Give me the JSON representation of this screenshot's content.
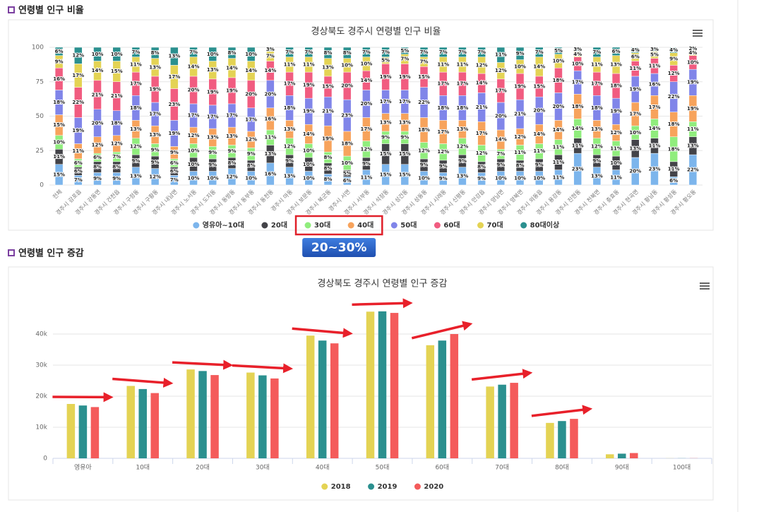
{
  "headings": [
    "연령별 인구 비율",
    "연령별 인구 증감"
  ],
  "annotation": "20~30%",
  "chart_data": [
    {
      "type": "stacked_bar",
      "title": "경상북도 경주시 연령별 인구 비율",
      "categories": [
        "전체",
        "경주시 감포읍",
        "경주시 강동면",
        "경주시 건천읍",
        "경주시 구정동",
        "경주시 구황동",
        "경주시 내남면",
        "경주시 노서동",
        "경주시 도지동",
        "경주시 동방동",
        "경주시 동부동",
        "경주시 동천동",
        "경주시 마동",
        "경주시 보문동",
        "경주시 북군동",
        "경주시 서면",
        "경주시 서부동",
        "경주시 석장동",
        "경주시 성건동",
        "경주시 성동동",
        "경주시 시래동",
        "경주시 신평동",
        "경주시 안강읍",
        "경주시 양남면",
        "경주시 양북면",
        "경주시 외동읍",
        "경주시 용강동",
        "경주시 진현동",
        "경주시 천북면",
        "경주시 충효동",
        "경주시 현곡면",
        "경주시 황남동",
        "경주시 황성동",
        "경주시 황오동"
      ],
      "ylim": [
        0,
        100
      ],
      "yticks": [
        0,
        25,
        50,
        75,
        100
      ],
      "grid": true,
      "series": [
        {
          "name": "영유아~10대",
          "color": "#7cb5ec",
          "values": [
            15,
            7,
            9,
            9,
            13,
            12,
            7,
            10,
            10,
            12,
            10,
            16,
            13,
            10,
            8,
            6,
            11,
            15,
            15,
            10,
            9,
            13,
            9,
            10,
            10,
            10,
            11,
            23,
            13,
            11,
            20,
            23,
            6,
            22
          ],
          "value_labels": [
            "15%",
            "7%",
            "9%",
            "9%",
            "13%",
            "12%",
            "7%",
            "10%",
            "10%",
            "12%",
            "10%",
            "16%",
            "13%",
            "10%",
            "8%",
            "6%",
            "11%",
            "15%",
            "15%",
            "10%",
            "9%",
            "13%",
            "9%",
            "10%",
            "10%",
            "10%",
            "11%",
            "23%",
            "13%",
            "11%",
            "20%",
            "23%",
            "6%",
            "22%"
          ]
        },
        {
          "name": "20대",
          "color": "#434348",
          "values": [
            11,
            6,
            8,
            8,
            9,
            9,
            6,
            10,
            9,
            8,
            8,
            13,
            9,
            10,
            8,
            5,
            9,
            15,
            15,
            9,
            9,
            9,
            8,
            9,
            8,
            9,
            11,
            11,
            9,
            10,
            13,
            11,
            11,
            13
          ],
          "value_labels": [
            "11%",
            "6%",
            "8%",
            "8%",
            "9%",
            "9%",
            "6%",
            "10%",
            "9%",
            "8%",
            "8%",
            "13%",
            "9%",
            "10%",
            "8%",
            "5%",
            "9%",
            "15%",
            "15%",
            "9%",
            "9%",
            "9%",
            "8%",
            "9%",
            "8%",
            "9%",
            "11%",
            "11%",
            "9%",
            "10%",
            "13%",
            "11%",
            "11%",
            "13%"
          ]
        },
        {
          "name": "30대",
          "color": "#90ed7d",
          "values": [
            10,
            6,
            6,
            7,
            12,
            9,
            6,
            10,
            9,
            9,
            9,
            11,
            12,
            10,
            8,
            10,
            12,
            9,
            9,
            12,
            12,
            12,
            12,
            7,
            11,
            11,
            11,
            14,
            12,
            11,
            10,
            14,
            18,
            11
          ],
          "value_labels": [
            "10%",
            "6%",
            "6%",
            "7%",
            "12%",
            "9%",
            "6%",
            "10%",
            "9%",
            "9%",
            "9%",
            "11%",
            "12%",
            "10%",
            "8%",
            "10%",
            "12%",
            "9%",
            "9%",
            "12%",
            "12%",
            "12%",
            "12%",
            "7%",
            "11%",
            "11%",
            "11%",
            "14%",
            "12%",
            "11%",
            "10%",
            "14%",
            "18%",
            "11%"
          ]
        },
        {
          "name": "40대",
          "color": "#f7a35c",
          "values": [
            15,
            11,
            12,
            12,
            13,
            13,
            9,
            12,
            13,
            13,
            12,
            16,
            13,
            14,
            19,
            18,
            17,
            13,
            13,
            18,
            17,
            13,
            17,
            14,
            12,
            14,
            14,
            18,
            13,
            12,
            17,
            17,
            18,
            19
          ],
          "value_labels": [
            "15%",
            "11%",
            "12%",
            "12%",
            "13%",
            "13%",
            "9%",
            "12%",
            "13%",
            "13%",
            "12%",
            "16%",
            "13%",
            "14%",
            "19%",
            "18%",
            "17%",
            "13%",
            "13%",
            "18%",
            "17%",
            "13%",
            "17%",
            "14%",
            "12%",
            "14%",
            "14%",
            "18%",
            "13%",
            "12%",
            "17%",
            "17%",
            "18%",
            "19%"
          ]
        },
        {
          "name": "50대",
          "color": "#8085e9",
          "values": [
            18,
            19,
            20,
            18,
            18,
            17,
            19,
            17,
            17,
            17,
            17,
            20,
            18,
            19,
            21,
            23,
            20,
            17,
            17,
            22,
            18,
            18,
            21,
            20,
            21,
            20,
            20,
            17,
            18,
            19,
            19,
            16,
            22,
            19
          ],
          "value_labels": [
            "18%",
            "19%",
            "20%",
            "18%",
            "18%",
            "17%",
            "19%",
            "17%",
            "17%",
            "17%",
            "17%",
            "20%",
            "18%",
            "19%",
            "21%",
            "23%",
            "20%",
            "17%",
            "17%",
            "22%",
            "18%",
            "18%",
            "21%",
            "20%",
            "21%",
            "20%",
            "20%",
            "17%",
            "18%",
            "19%",
            "19%",
            "16%",
            "22%",
            "19%"
          ]
        },
        {
          "name": "60대",
          "color": "#f15c80",
          "values": [
            16,
            22,
            21,
            21,
            17,
            19,
            23,
            20,
            19,
            19,
            20,
            14,
            17,
            19,
            15,
            20,
            14,
            19,
            19,
            15,
            17,
            17,
            14,
            17,
            19,
            15,
            18,
            10,
            17,
            18,
            11,
            11,
            12,
            10
          ],
          "value_labels": [
            "16%",
            "22%",
            "21%",
            "21%",
            "17%",
            "19%",
            "23%",
            "20%",
            "19%",
            "19%",
            "20%",
            "14%",
            "17%",
            "19%",
            "15%",
            "20%",
            "14%",
            "19%",
            "19%",
            "15%",
            "17%",
            "17%",
            "14%",
            "17%",
            "19%",
            "15%",
            "18%",
            "10%",
            "17%",
            "18%",
            "11%",
            "11%",
            "12%",
            "10%"
          ]
        },
        {
          "name": "70대",
          "color": "#e4d354",
          "values": [
            9,
            17,
            14,
            15,
            11,
            13,
            17,
            14,
            13,
            14,
            14,
            7,
            11,
            11,
            13,
            10,
            10,
            5,
            7,
            7,
            11,
            11,
            12,
            12,
            10,
            14,
            10,
            4,
            11,
            13,
            6,
            5,
            9,
            4
          ],
          "value_labels": [
            "9%",
            "17%",
            "14%",
            "15%",
            "11%",
            "13%",
            "17%",
            "14%",
            "13%",
            "14%",
            "14%",
            "7%",
            "11%",
            "11%",
            "13%",
            "10%",
            "10%",
            "5%",
            "7%",
            "7%",
            "11%",
            "11%",
            "12%",
            "12%",
            "10%",
            "14%",
            "10%",
            "4%",
            "11%",
            "13%",
            "6%",
            "5%",
            "9%",
            "4%"
          ]
        },
        {
          "name": "80대이상",
          "color": "#2b908f",
          "values": [
            6,
            12,
            10,
            10,
            7,
            8,
            13,
            7,
            10,
            8,
            10,
            3,
            7,
            7,
            8,
            8,
            7,
            7,
            5,
            7,
            7,
            7,
            7,
            11,
            9,
            7,
            5,
            3,
            7,
            6,
            4,
            3,
            4,
            2
          ],
          "value_labels": [
            "6%",
            "12%",
            "10%",
            "10%",
            "7%",
            "8%",
            "13%",
            "7%",
            "10%",
            "8%",
            "10%",
            "3%",
            "7%",
            "7%",
            "8%",
            "8%",
            "7%",
            "7%",
            "5%",
            "7%",
            "7%",
            "7%",
            "7%",
            "11%",
            "9%",
            "7%",
            "5%",
            "3%",
            "7%",
            "6%",
            "4%",
            "3%",
            "4%",
            "2%"
          ]
        }
      ]
    },
    {
      "type": "bar",
      "title": "경상북도 경주시 연령별 인구 증감",
      "categories": [
        "영유아",
        "10대",
        "20대",
        "30대",
        "40대",
        "50대",
        "60대",
        "70대",
        "80대",
        "90대",
        "100대"
      ],
      "ylim": [
        0,
        50000
      ],
      "yticks": [
        0,
        {
          "value": 10000,
          "label": "10k"
        },
        {
          "value": 20000,
          "label": "20k"
        },
        {
          "value": 30000,
          "label": "30k"
        },
        {
          "value": 40000,
          "label": "40k"
        }
      ],
      "grid": true,
      "series": [
        {
          "name": "2018",
          "color": "#e4d354",
          "values": [
            17500,
            23300,
            28600,
            27600,
            39500,
            47200,
            36400,
            23100,
            11400,
            1300,
            30
          ]
        },
        {
          "name": "2019",
          "color": "#2b908f",
          "values": [
            17000,
            22300,
            28100,
            26700,
            37900,
            47300,
            37900,
            23700,
            12000,
            1500,
            30
          ]
        },
        {
          "name": "2020",
          "color": "#f45b5b",
          "values": [
            16500,
            21000,
            26800,
            25700,
            37000,
            46800,
            40000,
            24300,
            12700,
            1700,
            40
          ]
        }
      ]
    }
  ]
}
